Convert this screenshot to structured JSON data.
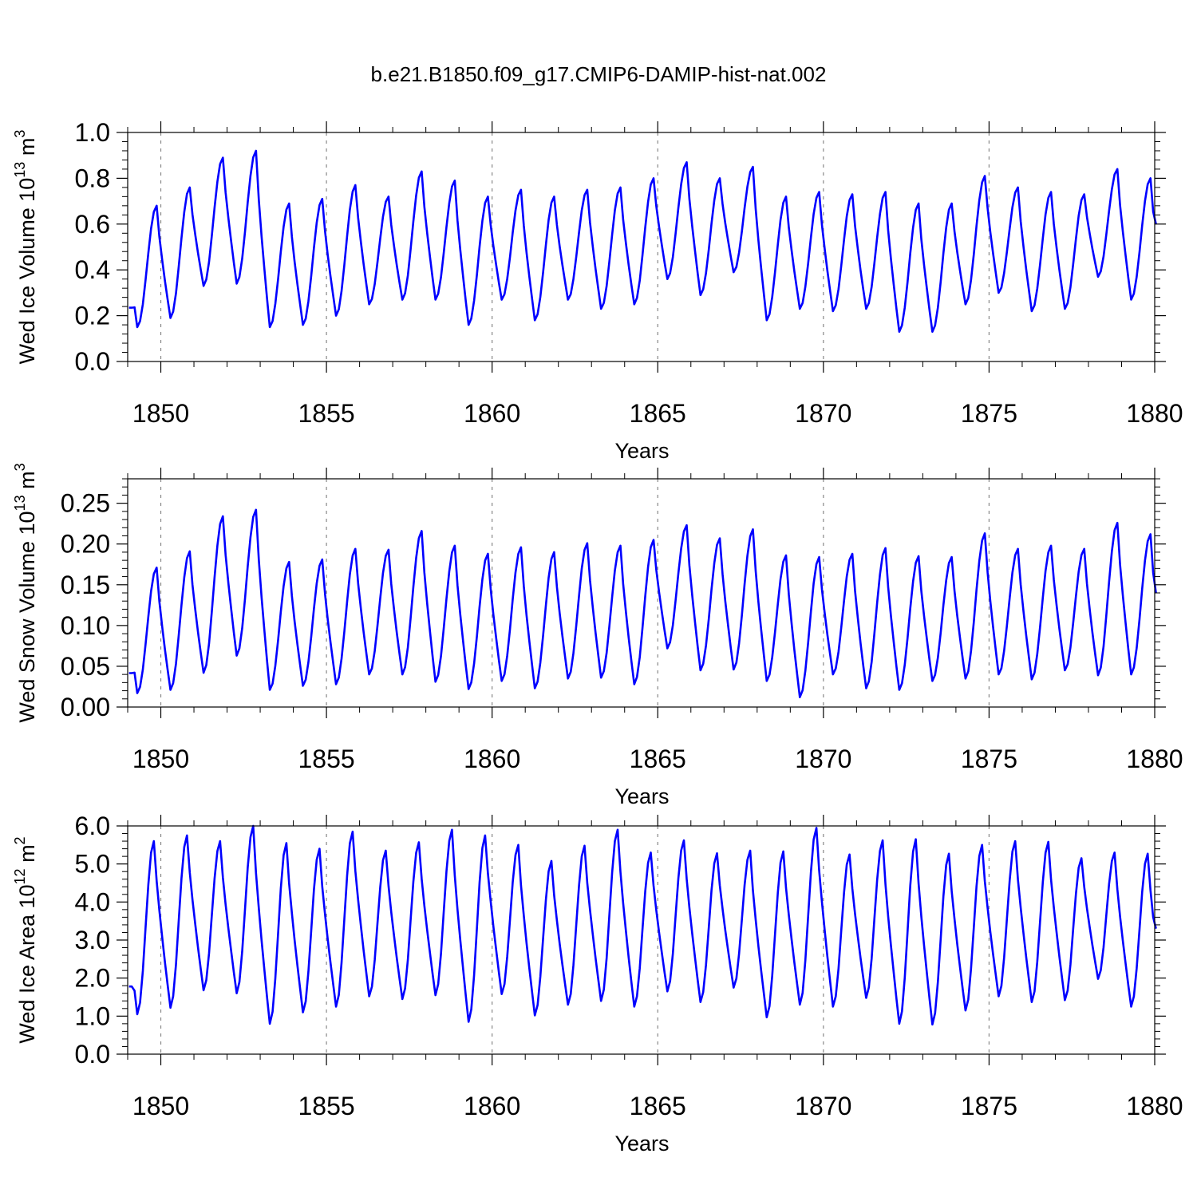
{
  "figure_title": "b.e21.B1850.f09_g17.CMIP6-DAMIP-hist-nat.002",
  "line_color": "#0000ff",
  "chart_data": [
    {
      "type": "line",
      "title": "b.e21.B1850.f09_g17.CMIP6-DAMIP-hist-nat.002",
      "ylabel": "Wed Ice Volume 10^13 m^3",
      "ylabel_main": "Wed Ice Volume 10",
      "ylabel_exp": "13",
      "ylabel_unit": "m",
      "ylabel_unit_exp": "3",
      "xlabel": "Years",
      "xlim": [
        1849,
        1880
      ],
      "ylim": [
        0,
        1.0
      ],
      "xticks": [
        1850,
        1855,
        1860,
        1865,
        1870,
        1875,
        1880
      ],
      "yticks": [
        "0.0",
        "0.2",
        "0.4",
        "0.6",
        "0.8",
        "1.0"
      ],
      "ytick_values": [
        0,
        0.2,
        0.4,
        0.6,
        0.8,
        1.0
      ],
      "grid": "vertical dashed at major x ticks",
      "x_start": 1849.04,
      "x_step": 0.08333,
      "minima": [
        0.15,
        0.19,
        0.33,
        0.34,
        0.15,
        0.16,
        0.2,
        0.25,
        0.27,
        0.27,
        0.16,
        0.27,
        0.18,
        0.27,
        0.23,
        0.25,
        0.36,
        0.29,
        0.39,
        0.18,
        0.23,
        0.22,
        0.23,
        0.13,
        0.13,
        0.25,
        0.3,
        0.22,
        0.23,
        0.37,
        0.27
      ],
      "maxima": [
        0.68,
        0.76,
        0.89,
        0.92,
        0.69,
        0.71,
        0.77,
        0.72,
        0.83,
        0.79,
        0.72,
        0.75,
        0.72,
        0.75,
        0.76,
        0.8,
        0.87,
        0.8,
        0.85,
        0.72,
        0.74,
        0.73,
        0.74,
        0.69,
        0.69,
        0.81,
        0.76,
        0.74,
        0.73,
        0.84,
        0.8
      ],
      "min_month": 3,
      "max_month": 10,
      "final_value": 0.6
    },
    {
      "type": "line",
      "ylabel": "Wed Snow Volume 10^13 m^3",
      "ylabel_main": "Wed Snow Volume 10",
      "ylabel_exp": "13",
      "ylabel_unit": "m",
      "ylabel_unit_exp": "3",
      "xlabel": "Years",
      "xlim": [
        1849,
        1880
      ],
      "ylim": [
        0,
        0.28
      ],
      "xticks": [
        1850,
        1855,
        1860,
        1865,
        1870,
        1875,
        1880
      ],
      "yticks": [
        "0.00",
        "0.05",
        "0.10",
        "0.15",
        "0.20",
        "0.25"
      ],
      "ytick_values": [
        0,
        0.05,
        0.1,
        0.15,
        0.2,
        0.25
      ],
      "grid": "vertical dashed at major x ticks",
      "x_start": 1849.04,
      "x_step": 0.08333,
      "minima": [
        0.017,
        0.021,
        0.042,
        0.063,
        0.021,
        0.026,
        0.028,
        0.04,
        0.04,
        0.031,
        0.022,
        0.032,
        0.023,
        0.035,
        0.036,
        0.028,
        0.072,
        0.045,
        0.046,
        0.032,
        0.012,
        0.04,
        0.023,
        0.021,
        0.032,
        0.035,
        0.04,
        0.034,
        0.045,
        0.039,
        0.04
      ],
      "maxima": [
        0.171,
        0.191,
        0.234,
        0.242,
        0.178,
        0.181,
        0.194,
        0.193,
        0.216,
        0.198,
        0.188,
        0.196,
        0.19,
        0.201,
        0.198,
        0.205,
        0.223,
        0.207,
        0.218,
        0.186,
        0.184,
        0.188,
        0.195,
        0.185,
        0.184,
        0.213,
        0.194,
        0.198,
        0.194,
        0.226,
        0.212
      ],
      "min_month": 3,
      "max_month": 10,
      "final_value": 0.14
    },
    {
      "type": "line",
      "ylabel": "Wed Ice Area 10^12 m^2",
      "ylabel_main": "Wed Ice Area 10",
      "ylabel_exp": "12",
      "ylabel_unit": "m",
      "ylabel_unit_exp": "2",
      "xlabel": "Years",
      "xlim": [
        1849,
        1880
      ],
      "ylim": [
        0,
        6.0
      ],
      "xticks": [
        1850,
        1855,
        1860,
        1865,
        1870,
        1875,
        1880
      ],
      "yticks": [
        "0.0",
        "1.0",
        "2.0",
        "3.0",
        "4.0",
        "5.0",
        "6.0"
      ],
      "ytick_values": [
        0,
        1,
        2,
        3,
        4,
        5,
        6
      ],
      "grid": "vertical dashed at major x ticks",
      "x_start": 1849.04,
      "x_step": 0.08333,
      "minima": [
        1.05,
        1.22,
        1.68,
        1.6,
        0.8,
        1.1,
        1.25,
        1.52,
        1.45,
        1.55,
        0.85,
        1.58,
        1.02,
        1.3,
        1.4,
        1.25,
        1.65,
        1.37,
        1.75,
        0.97,
        1.3,
        1.25,
        1.48,
        0.8,
        0.78,
        1.15,
        1.52,
        1.37,
        1.42,
        1.98,
        1.25
      ],
      "maxima": [
        5.6,
        5.75,
        5.6,
        6.0,
        5.55,
        5.4,
        5.85,
        5.35,
        5.57,
        5.9,
        5.75,
        5.5,
        5.08,
        5.48,
        5.9,
        5.3,
        5.62,
        5.28,
        5.35,
        5.33,
        5.95,
        5.25,
        5.62,
        5.65,
        5.27,
        5.5,
        5.6,
        5.58,
        5.15,
        5.3,
        5.27
      ],
      "min_month": 3,
      "max_month": 9,
      "final_value": 3.3
    }
  ]
}
